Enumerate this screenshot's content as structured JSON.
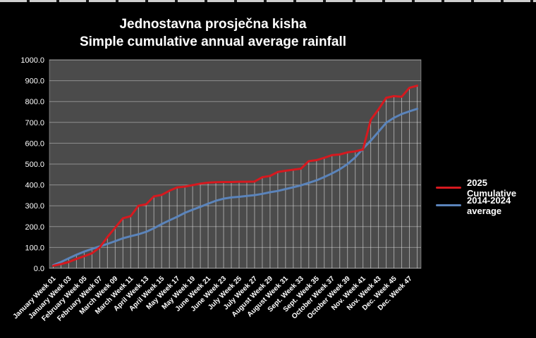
{
  "window": {
    "title_line1": "Jednostavna prosječna kisha",
    "title_line2": "Simple cumulative annual average rainfall",
    "background_color": "#000000",
    "plot_background_color": "#4b4b4b",
    "gridline_color": "#a9a9a9",
    "text_color": "#ffffff"
  },
  "chart_data": {
    "type": "line",
    "title": "Jednostavna prosječna kisha — Simple cumulative annual average rainfall",
    "xlabel": "",
    "ylabel": "",
    "ylim": [
      0,
      1000
    ],
    "y_tick_step": 100,
    "y_tick_labels": [
      "0.0",
      "100.0",
      "200.0",
      "300.0",
      "400.0",
      "500.0",
      "600.0",
      "700.0",
      "800.0",
      "900.0",
      "1000.0"
    ],
    "grid": "horizontal gridlines plus vertical drop lines at every weekly point",
    "legend_position": "right",
    "weeks_count": 48,
    "x_tick_labels": [
      "January Week 01",
      "January Week 03",
      "February Week 05",
      "February Week 07",
      "March Week 09",
      "March Week 11",
      "April Week 13",
      "April Week 15",
      "May Week 17",
      "May Week 19",
      "June Week 21",
      "June Week 23",
      "July Week 25",
      "July Week 27",
      "August Week 29",
      "August Week 31",
      "Sept. Week 33",
      "Sept. Week 35",
      "October Week 37",
      "October Week 39",
      "Nov. Week 41",
      "Nov. Week 43",
      "Dec. Week 45",
      "Dec. Week 47"
    ],
    "x_tick_label_spacing": "every 2nd week starting at week 1",
    "series": [
      {
        "name": "2025 Cumulative",
        "color": "#d6191f",
        "values": [
          12,
          20,
          30,
          45,
          58,
          72,
          100,
          150,
          195,
          240,
          250,
          300,
          307,
          345,
          352,
          372,
          388,
          392,
          399,
          406,
          411,
          413,
          414,
          414,
          415,
          415,
          416,
          437,
          443,
          462,
          468,
          473,
          478,
          514,
          519,
          530,
          543,
          546,
          556,
          561,
          570,
          712,
          762,
          818,
          826,
          823,
          866,
          876
        ]
      },
      {
        "name": "2014-2024 average",
        "color": "#5b84bb",
        "values": [
          15,
          30,
          48,
          65,
          80,
          93,
          105,
          117,
          130,
          144,
          154,
          163,
          175,
          192,
          212,
          230,
          247,
          266,
          281,
          295,
          310,
          324,
          334,
          340,
          343,
          347,
          351,
          357,
          365,
          371,
          380,
          389,
          398,
          410,
          422,
          438,
          455,
          475,
          500,
          532,
          574,
          612,
          655,
          698,
          722,
          740,
          753,
          765
        ]
      }
    ]
  }
}
